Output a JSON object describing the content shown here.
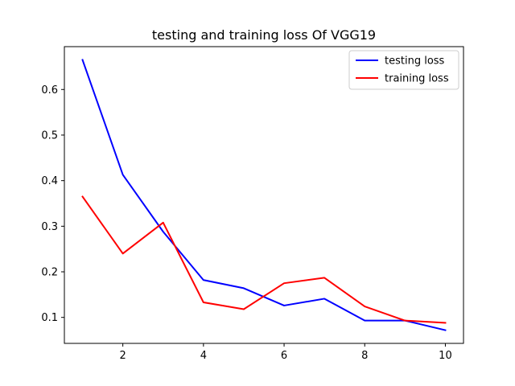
{
  "chart_data": {
    "type": "line",
    "title": "testing and training loss Of VGG19",
    "xlabel": "",
    "ylabel": "",
    "x": [
      1,
      2,
      3,
      4,
      5,
      6,
      7,
      8,
      9,
      10
    ],
    "xlim": [
      0.55,
      10.45
    ],
    "ylim": [
      0.043,
      0.694
    ],
    "xticks": [
      2,
      4,
      6,
      8,
      10
    ],
    "yticks": [
      0.1,
      0.2,
      0.3,
      0.4,
      0.5,
      0.6
    ],
    "xtick_labels": [
      "2",
      "4",
      "6",
      "8",
      "10"
    ],
    "ytick_labels": [
      "0.1",
      "0.2",
      "0.3",
      "0.4",
      "0.5",
      "0.6"
    ],
    "grid": false,
    "legend_position": "top-right",
    "series": [
      {
        "name": "testing loss",
        "color": "#0000ff",
        "values": [
          0.665,
          0.413,
          0.288,
          0.182,
          0.164,
          0.126,
          0.141,
          0.093,
          0.093,
          0.072
        ]
      },
      {
        "name": "training loss",
        "color": "#ff0000",
        "values": [
          0.365,
          0.24,
          0.308,
          0.133,
          0.118,
          0.175,
          0.187,
          0.124,
          0.093,
          0.088
        ]
      }
    ]
  }
}
